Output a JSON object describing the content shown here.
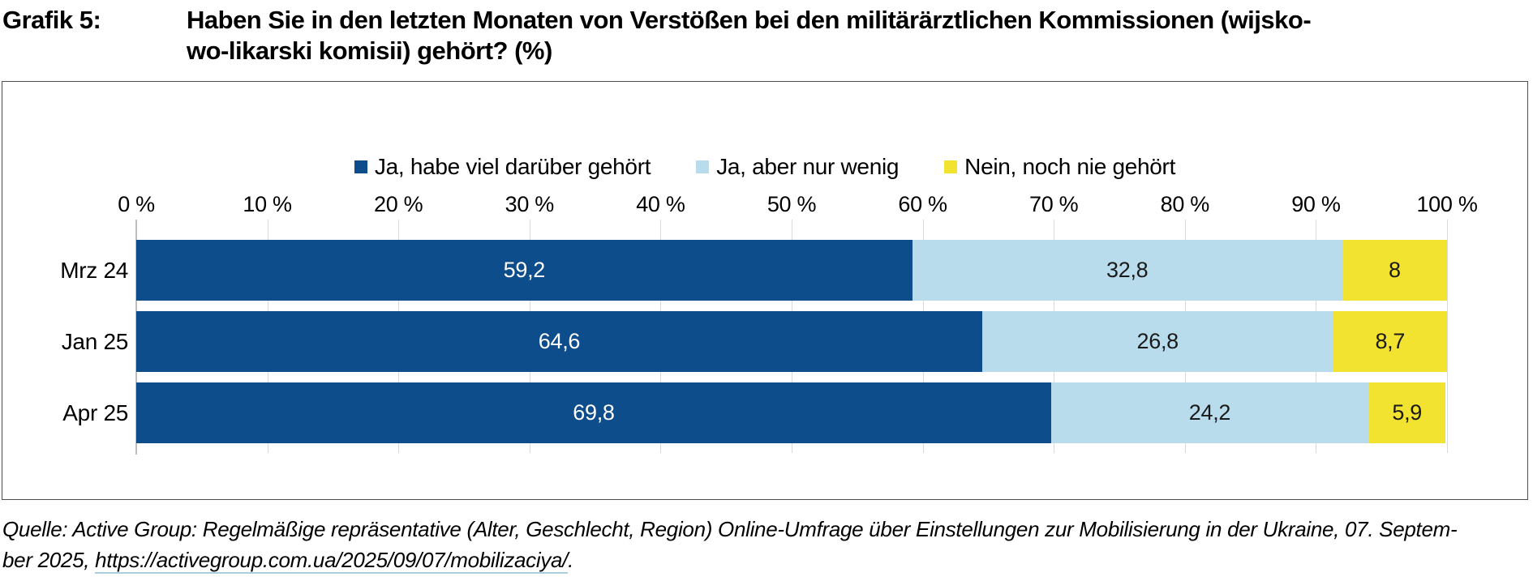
{
  "title": {
    "label": "Grafik 5:",
    "lines": [
      "Haben Sie in den letzten Monaten von Verstößen bei den militärärztlichen Kommissionen (wijsko-",
      "wo-likarski komisii) gehört? (%)"
    ]
  },
  "chart_data": {
    "type": "bar",
    "orientation": "horizontal",
    "stacked": true,
    "grid": true,
    "legend_position": "top",
    "categories": [
      "Mrz 24",
      "Jan 25",
      "Apr 25"
    ],
    "series": [
      {
        "name": "Ja, habe viel darüber gehört",
        "color": "#0d4d8c",
        "label_color": "#ffffff",
        "values": [
          59.2,
          64.6,
          69.8
        ]
      },
      {
        "name": "Ja, aber nur wenig",
        "color": "#b9dcec",
        "label_color": "#1a1a1a",
        "values": [
          32.8,
          26.8,
          24.2
        ]
      },
      {
        "name": "Nein, noch nie gehört",
        "color": "#f2e331",
        "label_color": "#1a1a1a",
        "values": [
          8,
          8.7,
          5.9
        ]
      }
    ],
    "value_labels": [
      [
        "59,2",
        "32,8",
        "8"
      ],
      [
        "64,6",
        "26,8",
        "8,7"
      ],
      [
        "69,8",
        "24,2",
        "5,9"
      ]
    ],
    "x_ticks": [
      "0 %",
      "10 %",
      "20 %",
      "30 %",
      "40 %",
      "50 %",
      "60 %",
      "70 %",
      "80 %",
      "90 %",
      "100 %"
    ],
    "xlim": [
      0,
      100
    ]
  },
  "footer": {
    "line1": "Quelle: Active Group: Regelmäßige repräsentative (Alter, Geschlecht, Region) Online-Umfrage über Einstellungen zur Mobilisierung in der Ukraine, 07. Septem-",
    "line2_prefix": "ber 2025, ",
    "link_text": "https://activegroup.com.ua/2025/09/07/mobilizaciya/",
    "line2_suffix": "."
  }
}
